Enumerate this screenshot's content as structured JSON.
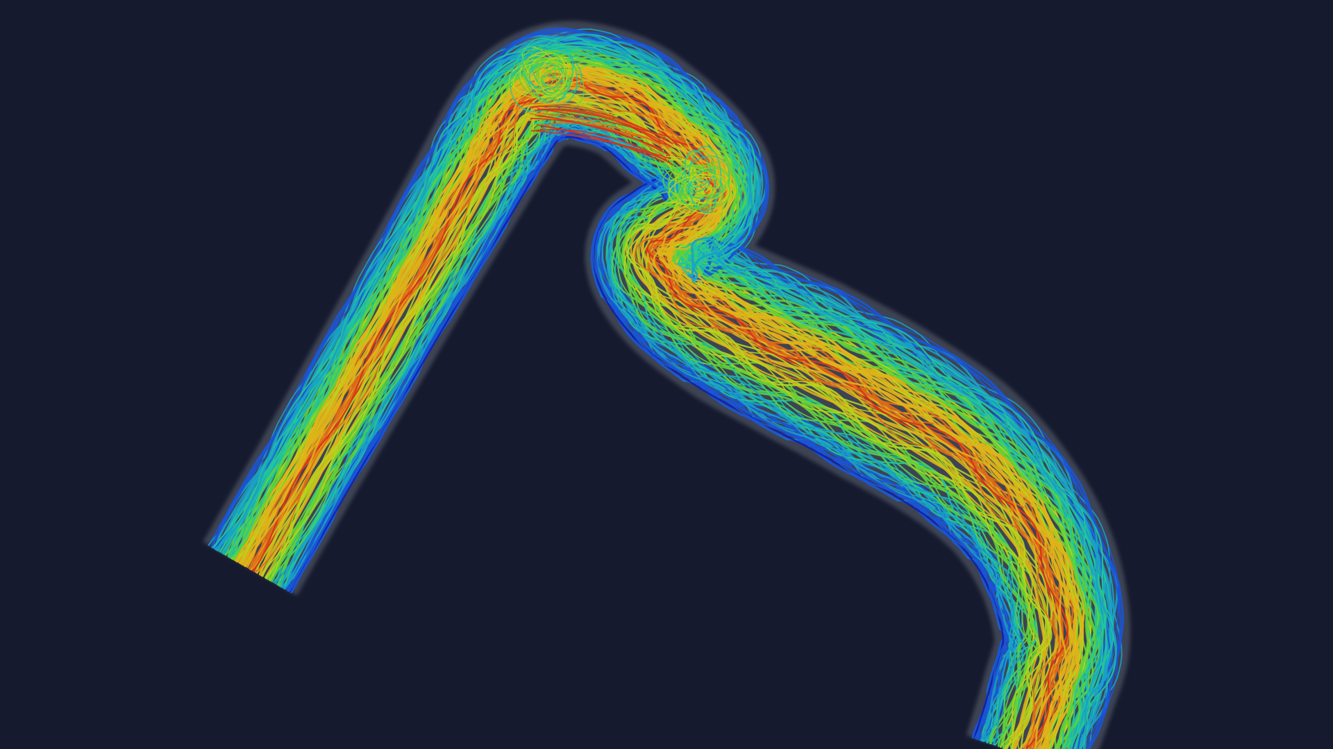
{
  "scene": {
    "background_color": "#151a2e",
    "vessel_wall_color": "#8a8f99",
    "colormap": [
      "#0a1fb5",
      "#1a55d6",
      "#1aa0c8",
      "#22c79a",
      "#5fd13a",
      "#b7d51c",
      "#e0b21a",
      "#e06a18",
      "#d8301a"
    ],
    "description_icon": "streamline-render"
  }
}
